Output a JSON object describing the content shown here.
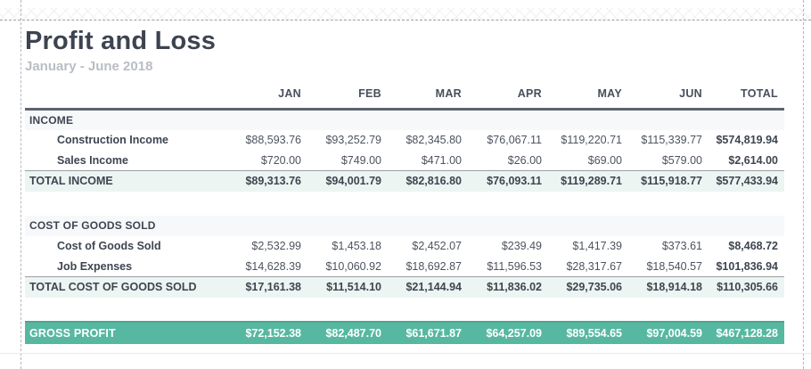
{
  "report": {
    "title": "Profit and Loss",
    "subtitle": "January - June 2018"
  },
  "colors": {
    "accent_teal": "#57b8a1",
    "total_row_bg": "#edf5f2",
    "section_row_bg": "#f7f8fa",
    "title_text": "#3d4450"
  },
  "table": {
    "columns": [
      "JAN",
      "FEB",
      "MAR",
      "APR",
      "MAY",
      "JUN",
      "TOTAL"
    ],
    "rows": [
      {
        "type": "section",
        "label": "INCOME"
      },
      {
        "type": "detail",
        "label": "Construction Income",
        "values": [
          "$88,593.76",
          "$93,252.79",
          "$82,345.80",
          "$76,067.11",
          "$119,220.71",
          "$115,339.77",
          "$574,819.94"
        ]
      },
      {
        "type": "detail",
        "label": "Sales Income",
        "values": [
          "$720.00",
          "$749.00",
          "$471.00",
          "$26.00",
          "$69.00",
          "$579.00",
          "$2,614.00"
        ]
      },
      {
        "type": "total",
        "label": "TOTAL INCOME",
        "values": [
          "$89,313.76",
          "$94,001.79",
          "$82,816.80",
          "$76,093.11",
          "$119,289.71",
          "$115,918.77",
          "$577,433.94"
        ]
      },
      {
        "type": "spacer"
      },
      {
        "type": "section",
        "label": "COST OF GOODS SOLD"
      },
      {
        "type": "detail",
        "label": "Cost of Goods Sold",
        "values": [
          "$2,532.99",
          "$1,453.18",
          "$2,452.07",
          "$239.49",
          "$1,417.39",
          "$373.61",
          "$8,468.72"
        ]
      },
      {
        "type": "detail",
        "label": "Job Expenses",
        "values": [
          "$14,628.39",
          "$10,060.92",
          "$18,692.87",
          "$11,596.53",
          "$28,317.67",
          "$18,540.57",
          "$101,836.94"
        ]
      },
      {
        "type": "total",
        "label": "TOTAL COST OF GOODS SOLD",
        "values": [
          "$17,161.38",
          "$11,514.10",
          "$21,144.94",
          "$11,836.02",
          "$29,735.06",
          "$18,914.18",
          "$110,305.66"
        ]
      },
      {
        "type": "spacer"
      },
      {
        "type": "gross",
        "label": "GROSS PROFIT",
        "values": [
          "$72,152.38",
          "$82,487.70",
          "$61,671.87",
          "$64,257.09",
          "$89,554.65",
          "$97,004.59",
          "$467,128.28"
        ]
      }
    ]
  }
}
